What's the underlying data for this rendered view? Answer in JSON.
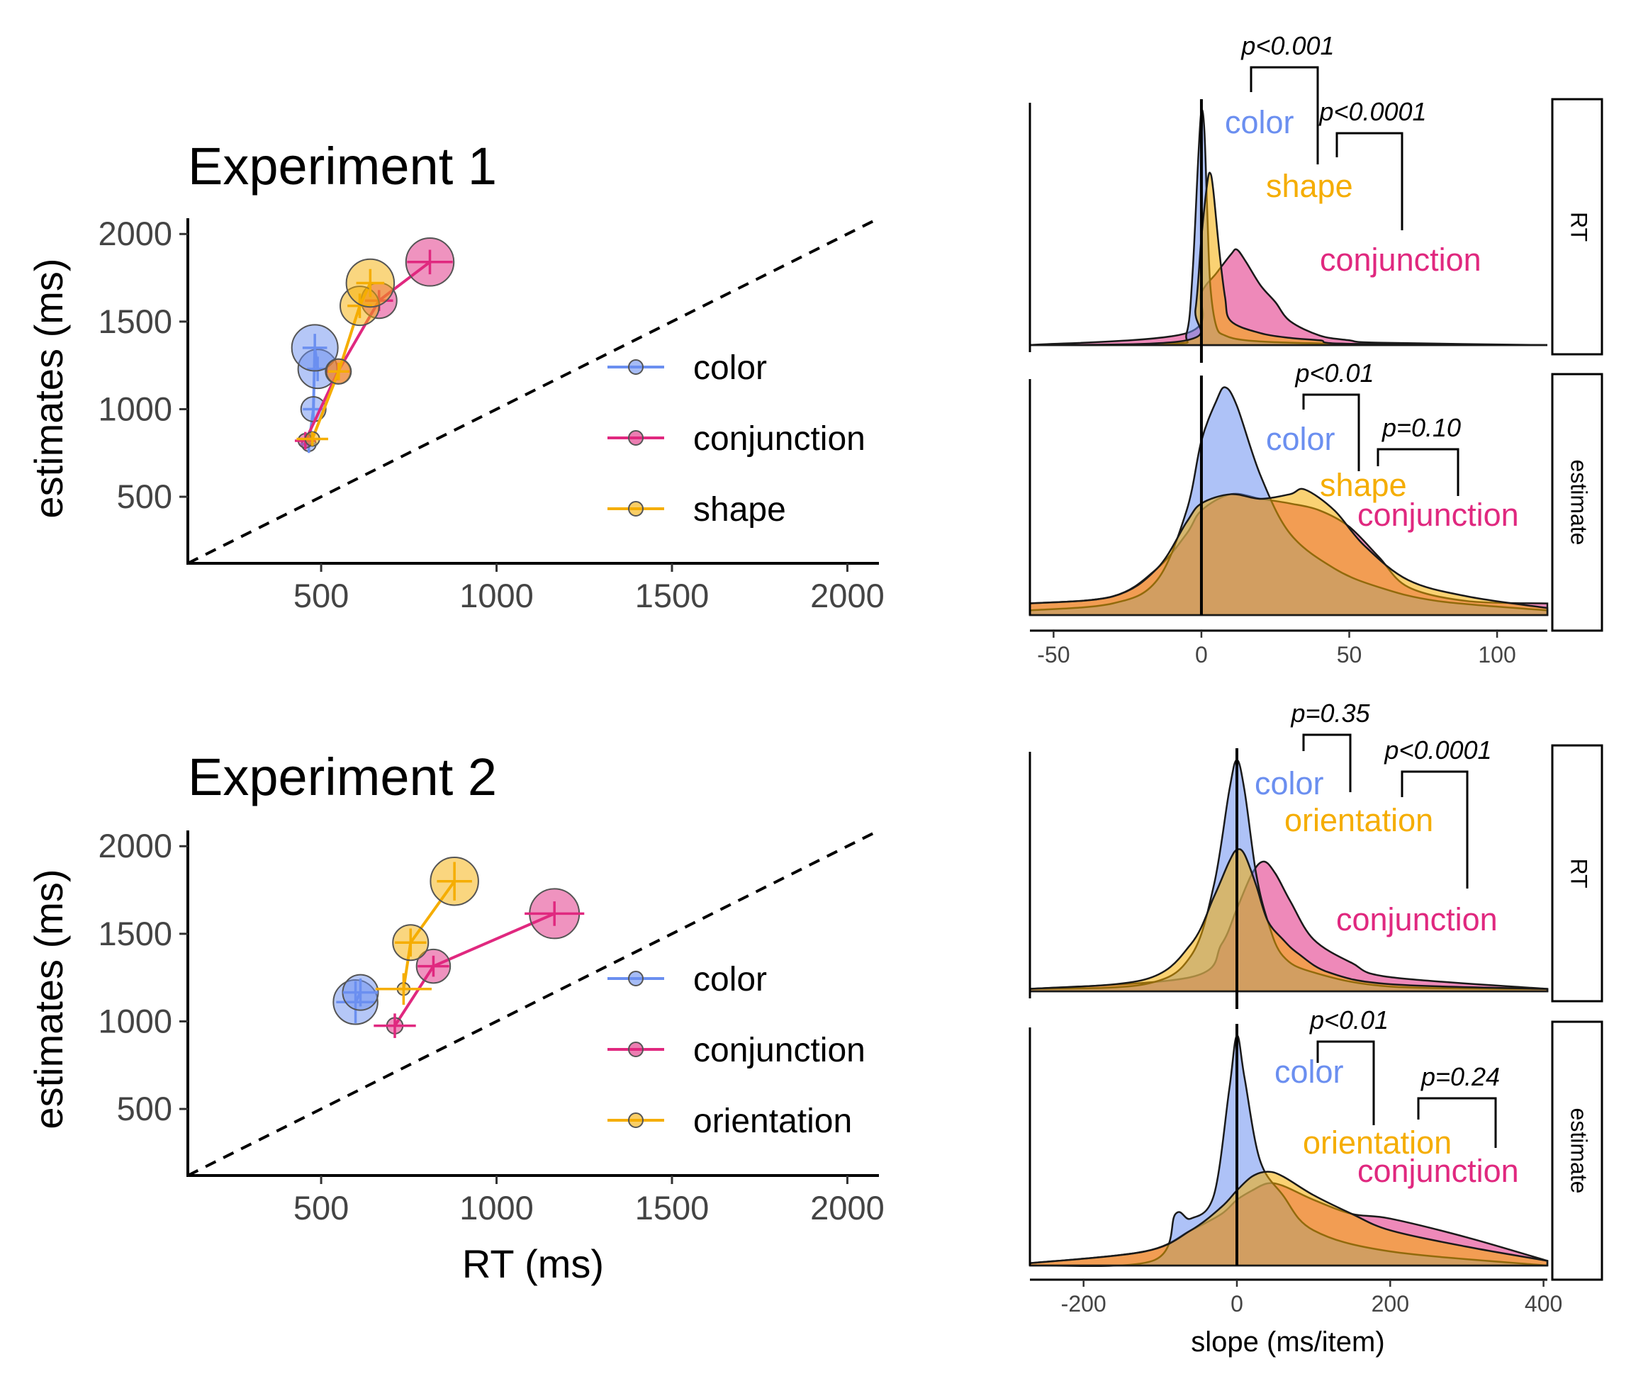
{
  "colors": {
    "color": "#6b8ff0",
    "conjunction": "#e0287f",
    "shape": "#f5ad00",
    "orientation": "#f5ad00"
  },
  "chart_data": [
    {
      "type": "scatter",
      "title": "Experiment 1",
      "xlabel": "",
      "ylabel": "estimates (ms)",
      "xlim": [
        120,
        2090
      ],
      "ylim": [
        120,
        2090
      ],
      "xticks": [
        "500",
        "1000",
        "1500",
        "2000"
      ],
      "yticks": [
        "500",
        "1000",
        "1500",
        "2000"
      ],
      "identity_line": true,
      "legend": [
        "color",
        "conjunction",
        "shape"
      ],
      "series": [
        {
          "name": "color",
          "key": "color",
          "points": [
            {
              "x": 465,
              "y": 800,
              "size": 8,
              "xerr": 25,
              "yerr": 50
            },
            {
              "x": 478,
              "y": 1000,
              "size": 14,
              "xerr": 30,
              "yerr": 60
            },
            {
              "x": 490,
              "y": 1230,
              "size": 22,
              "xerr": 30,
              "yerr": 70
            },
            {
              "x": 482,
              "y": 1350,
              "size": 26,
              "xerr": 35,
              "yerr": 80
            }
          ]
        },
        {
          "name": "conjunction",
          "key": "conjunction",
          "points": [
            {
              "x": 455,
              "y": 820,
              "size": 8,
              "xerr": 30,
              "yerr": 50
            },
            {
              "x": 548,
              "y": 1215,
              "size": 14,
              "xerr": 35,
              "yerr": 50
            },
            {
              "x": 665,
              "y": 1620,
              "size": 20,
              "xerr": 40,
              "yerr": 60
            },
            {
              "x": 810,
              "y": 1840,
              "size": 27,
              "xerr": 65,
              "yerr": 70
            }
          ]
        },
        {
          "name": "shape",
          "key": "shape",
          "points": [
            {
              "x": 475,
              "y": 830,
              "size": 8,
              "xerr": 45,
              "yerr": 40
            },
            {
              "x": 550,
              "y": 1215,
              "size": 14,
              "xerr": 30,
              "yerr": 50
            },
            {
              "x": 610,
              "y": 1590,
              "size": 22,
              "xerr": 35,
              "yerr": 70
            },
            {
              "x": 640,
              "y": 1720,
              "size": 27,
              "xerr": 40,
              "yerr": 80
            }
          ]
        }
      ]
    },
    {
      "type": "scatter",
      "title": "Experiment 2",
      "xlabel": "RT (ms)",
      "ylabel": "estimates (ms)",
      "xlim": [
        120,
        2090
      ],
      "ylim": [
        120,
        2090
      ],
      "xticks": [
        "500",
        "1000",
        "1500",
        "2000"
      ],
      "yticks": [
        "500",
        "1000",
        "1500",
        "2000"
      ],
      "identity_line": true,
      "legend": [
        "color",
        "conjunction",
        "orientation"
      ],
      "series": [
        {
          "name": "color",
          "key": "color",
          "points": [
            {
              "x": 598,
              "y": 1110,
              "size": 25,
              "xerr": 55,
              "yerr": 120
            },
            {
              "x": 612,
              "y": 1165,
              "size": 20,
              "xerr": 50,
              "yerr": 80
            }
          ]
        },
        {
          "name": "conjunction",
          "key": "conjunction",
          "points": [
            {
              "x": 710,
              "y": 975,
              "size": 9,
              "xerr": 60,
              "yerr": 70
            },
            {
              "x": 820,
              "y": 1315,
              "size": 19,
              "xerr": 45,
              "yerr": 60
            },
            {
              "x": 1165,
              "y": 1615,
              "size": 28,
              "xerr": 85,
              "yerr": 70
            }
          ]
        },
        {
          "name": "orientation",
          "key": "orientation",
          "points": [
            {
              "x": 735,
              "y": 1185,
              "size": 7,
              "xerr": 80,
              "yerr": 90
            },
            {
              "x": 755,
              "y": 1450,
              "size": 20,
              "xerr": 45,
              "yerr": 80
            },
            {
              "x": 880,
              "y": 1800,
              "size": 27,
              "xerr": 50,
              "yerr": 110
            }
          ]
        }
      ]
    },
    {
      "type": "area",
      "title": "",
      "xlabel": "",
      "xlim": [
        -58,
        117
      ],
      "xticks": [
        -50,
        0,
        50,
        100
      ],
      "facets": [
        {
          "strip": "RT",
          "labels": {
            "color": "color",
            "second": "shape",
            "conjunction": "conjunction"
          },
          "pvalues": [
            "p<0.001",
            "p<0.0001"
          ],
          "series": [
            {
              "key": "color",
              "x": [
                -58,
                -10,
                -5,
                -3,
                -1,
                0,
                1,
                2,
                3,
                5,
                8,
                15,
                30,
                60,
                117
              ],
              "y": [
                0,
                0.005,
                0.05,
                0.3,
                0.8,
                0.98,
                0.9,
                0.55,
                0.25,
                0.08,
                0.04,
                0.02,
                0.01,
                0.004,
                0
              ]
            },
            {
              "key": "shape",
              "x": [
                -58,
                -5,
                -2,
                0,
                2,
                3,
                4,
                6,
                8,
                10,
                20,
                30,
                40,
                50,
                117
              ],
              "y": [
                0,
                0.02,
                0.15,
                0.45,
                0.68,
                0.72,
                0.65,
                0.4,
                0.2,
                0.1,
                0.05,
                0.03,
                0.02,
                0.005,
                0
              ]
            },
            {
              "key": "conjunction",
              "x": [
                -58,
                -5,
                0,
                5,
                10,
                12,
                15,
                20,
                25,
                30,
                40,
                50,
                60,
                117
              ],
              "y": [
                0,
                0.05,
                0.22,
                0.3,
                0.38,
                0.4,
                0.35,
                0.25,
                0.18,
                0.1,
                0.04,
                0.02,
                0.01,
                0
              ]
            }
          ]
        },
        {
          "strip": "estimate",
          "labels": {
            "color": "color",
            "second": "shape",
            "conjunction": "conjunction"
          },
          "pvalues": [
            "p<0.01",
            "p=0.10"
          ],
          "series": [
            {
              "key": "color",
              "x": [
                -58,
                -30,
                -15,
                -5,
                0,
                5,
                8,
                12,
                20,
                30,
                45,
                60,
                80,
                117
              ],
              "y": [
                0.02,
                0.05,
                0.15,
                0.45,
                0.75,
                0.92,
                0.98,
                0.9,
                0.6,
                0.35,
                0.2,
                0.12,
                0.06,
                0.02
              ]
            },
            {
              "key": "shape",
              "x": [
                -58,
                -30,
                -15,
                -5,
                0,
                10,
                20,
                30,
                35,
                45,
                55,
                70,
                90,
                117
              ],
              "y": [
                0.05,
                0.08,
                0.2,
                0.4,
                0.48,
                0.52,
                0.5,
                0.52,
                0.54,
                0.45,
                0.3,
                0.15,
                0.08,
                0.03
              ]
            },
            {
              "key": "conjunction",
              "x": [
                -58,
                -30,
                -15,
                -5,
                0,
                10,
                20,
                30,
                40,
                50,
                60,
                70,
                90,
                117
              ],
              "y": [
                0.05,
                0.08,
                0.2,
                0.35,
                0.45,
                0.52,
                0.5,
                0.48,
                0.45,
                0.38,
                0.25,
                0.12,
                0.06,
                0.05
              ]
            }
          ]
        }
      ]
    },
    {
      "type": "area",
      "title": "",
      "xlabel": "slope (ms/item)",
      "xlim": [
        -270,
        405
      ],
      "xticks": [
        -200,
        0,
        200,
        400
      ],
      "facets": [
        {
          "strip": "RT",
          "labels": {
            "color": "color",
            "second": "orientation",
            "conjunction": "conjunction"
          },
          "pvalues": [
            "p=0.35",
            "p<0.0001"
          ],
          "series": [
            {
              "key": "color",
              "x": [
                -270,
                -120,
                -60,
                -30,
                -10,
                0,
                10,
                25,
                40,
                60,
                100,
                200,
                405
              ],
              "y": [
                0.01,
                0.03,
                0.15,
                0.45,
                0.85,
                0.98,
                0.85,
                0.5,
                0.3,
                0.15,
                0.08,
                0.02,
                0.01
              ]
            },
            {
              "key": "orientation",
              "x": [
                -270,
                -120,
                -60,
                -30,
                -10,
                0,
                10,
                25,
                40,
                60,
                80,
                120,
                200,
                405
              ],
              "y": [
                0.01,
                0.05,
                0.2,
                0.4,
                0.55,
                0.6,
                0.58,
                0.45,
                0.3,
                0.22,
                0.16,
                0.08,
                0.03,
                0.01
              ]
            },
            {
              "key": "conjunction",
              "x": [
                -270,
                -60,
                -20,
                0,
                20,
                35,
                50,
                70,
                100,
                150,
                200,
                405
              ],
              "y": [
                0.01,
                0.06,
                0.2,
                0.35,
                0.5,
                0.55,
                0.5,
                0.38,
                0.22,
                0.12,
                0.06,
                0.01
              ]
            }
          ]
        },
        {
          "strip": "estimate",
          "labels": {
            "color": "color",
            "second": "orientation",
            "conjunction": "conjunction"
          },
          "pvalues": [
            "p<0.01",
            "p=0.24"
          ],
          "series": [
            {
              "key": "color",
              "x": [
                -270,
                -110,
                -80,
                -60,
                -30,
                -10,
                0,
                10,
                30,
                60,
                100,
                200,
                405
              ],
              "y": [
                0,
                0.02,
                0.22,
                0.2,
                0.3,
                0.75,
                0.98,
                0.8,
                0.45,
                0.3,
                0.15,
                0.06,
                0
              ]
            },
            {
              "key": "orientation",
              "x": [
                -270,
                -120,
                -60,
                -20,
                0,
                20,
                40,
                60,
                100,
                150,
                200,
                300,
                405
              ],
              "y": [
                0.01,
                0.06,
                0.15,
                0.25,
                0.32,
                0.38,
                0.4,
                0.38,
                0.3,
                0.22,
                0.15,
                0.08,
                0.02
              ]
            },
            {
              "key": "conjunction",
              "x": [
                -270,
                -120,
                -60,
                -20,
                0,
                20,
                40,
                60,
                100,
                150,
                200,
                300,
                405
              ],
              "y": [
                0.01,
                0.06,
                0.15,
                0.22,
                0.28,
                0.32,
                0.35,
                0.34,
                0.28,
                0.22,
                0.2,
                0.12,
                0.02
              ]
            }
          ]
        }
      ]
    }
  ]
}
